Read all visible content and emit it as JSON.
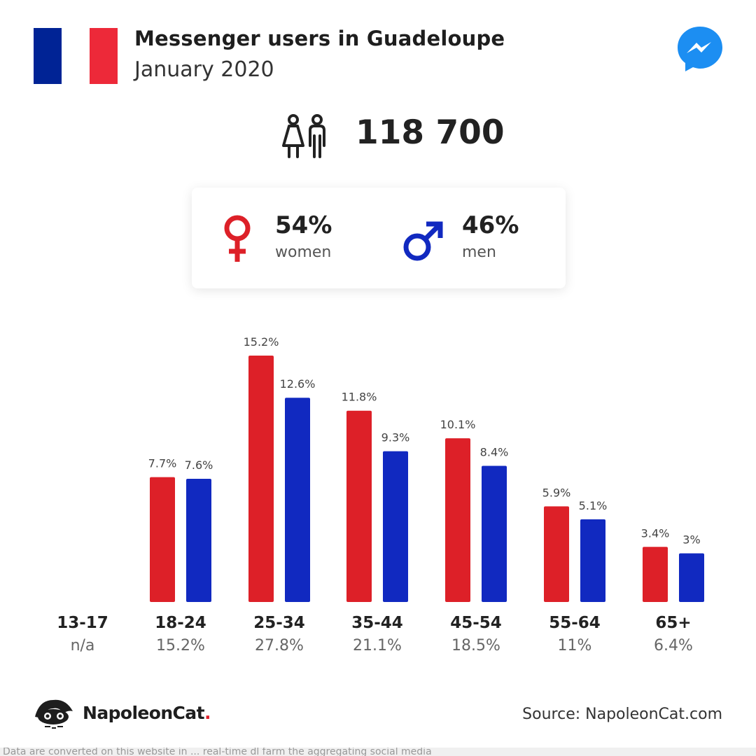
{
  "header": {
    "title": "Messenger users in Guadeloupe",
    "subtitle": "January 2020"
  },
  "colors": {
    "flag_blue": "#002395",
    "flag_red": "#ED2939",
    "women": "#DD2028",
    "men": "#1129C0",
    "messenger": "#1C8EF2"
  },
  "icons": [
    "flag-icon",
    "messenger-icon",
    "people-icon",
    "female-icon",
    "male-icon",
    "napoleoncat-logo"
  ],
  "total_users": "118 700",
  "gender": {
    "women_pct": "54%",
    "women_label": "women",
    "men_pct": "46%",
    "men_label": "men"
  },
  "chart_data": {
    "type": "bar",
    "categories": [
      "13-17",
      "18-24",
      "25-34",
      "35-44",
      "45-54",
      "55-64",
      "65+"
    ],
    "category_totals": [
      "n/a",
      "15.2%",
      "27.8%",
      "21.1%",
      "18.5%",
      "11%",
      "6.4%"
    ],
    "series": [
      {
        "color": "#DD2028",
        "values": [
          null,
          7.7,
          15.2,
          11.8,
          10.1,
          5.9,
          3.4
        ],
        "labels": [
          "",
          "7.7%",
          "15.2%",
          "11.8%",
          "10.1%",
          "5.9%",
          "3.4%"
        ]
      },
      {
        "color": "#1129C0",
        "values": [
          null,
          7.6,
          12.6,
          9.3,
          8.4,
          5.1,
          3.0
        ],
        "labels": [
          "",
          "7.6%",
          "12.6%",
          "9.3%",
          "8.4%",
          "5.1%",
          "3%"
        ]
      }
    ],
    "ylim": [
      0,
      15.2
    ],
    "grid": false
  },
  "footer": {
    "brand": "NapoleonCat",
    "brand_dot": ".",
    "source": "Source: NapoleonCat.com",
    "cut_off_text": "Data are converted on this website in ... real-time dl farm the aggregating social media"
  }
}
